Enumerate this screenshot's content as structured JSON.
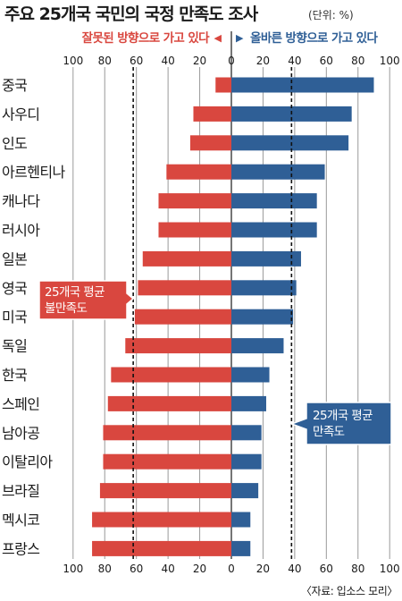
{
  "title": "주요 25개국 국민의 국정 만족도 조사",
  "unit_note": "(단위: %)",
  "source": "〈자료: 입소스 모리〉",
  "colors": {
    "negative": "#d9473f",
    "positive": "#2f5f96",
    "text": "#1a1a1a"
  },
  "chart_data": {
    "type": "bar",
    "orientation": "horizontal-diverging",
    "categories": [
      "중국",
      "사우디",
      "인도",
      "아르헨티나",
      "캐나다",
      "러시아",
      "일본",
      "영국",
      "미국",
      "독일",
      "한국",
      "스페인",
      "남아공",
      "이탈리아",
      "브라질",
      "멕시코",
      "프랑스"
    ],
    "series": [
      {
        "name": "잘못된 방향으로 가고 있다",
        "direction": "left",
        "values": [
          10,
          24,
          26,
          41,
          46,
          46,
          56,
          59,
          61,
          67,
          76,
          78,
          81,
          81,
          83,
          88,
          88
        ]
      },
      {
        "name": "올바른 방향으로 가고 있다",
        "direction": "right",
        "values": [
          90,
          76,
          74,
          59,
          54,
          54,
          44,
          41,
          39,
          33,
          24,
          22,
          19,
          19,
          17,
          12,
          12
        ]
      }
    ],
    "axis_ticks": [
      "100",
      "80",
      "60",
      "40",
      "20",
      "0",
      "20",
      "40",
      "60",
      "80",
      "100"
    ],
    "xlim": [
      -100,
      100
    ],
    "reference_lines": [
      {
        "label": [
          "25개국 평균",
          "불만족도"
        ],
        "value": -62,
        "side": "negative"
      },
      {
        "label": [
          "25개국 평균",
          "만족도"
        ],
        "value": 38,
        "side": "positive"
      }
    ],
    "legend_arrows": {
      "left": "◀",
      "right": "▶"
    },
    "grid": true
  }
}
